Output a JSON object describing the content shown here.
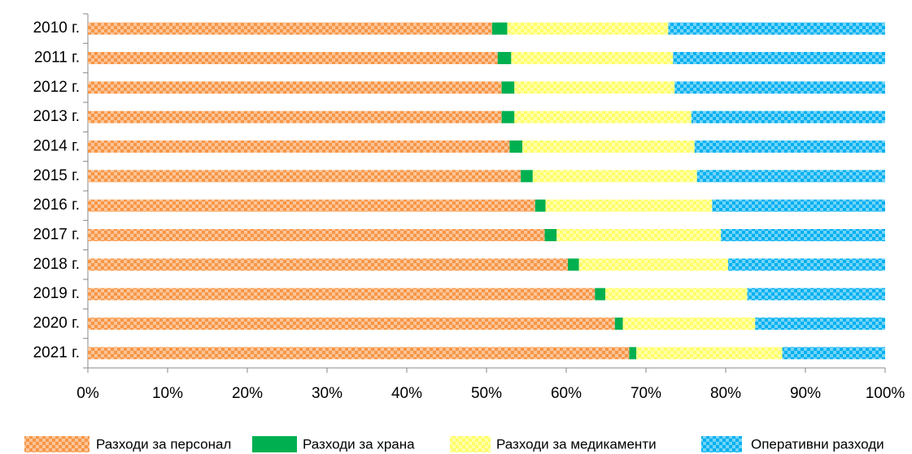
{
  "chart_data": {
    "type": "stacked-bar-horizontal",
    "categories": [
      "2010 г.",
      "2011 г.",
      "2012 г.",
      "2013 г.",
      "2014 г.",
      "2015 г.",
      "2016 г.",
      "2017 г.",
      "2018 г.",
      "2019 г.",
      "2020 г.",
      "2021 г."
    ],
    "series": [
      {
        "name": "Разходи за персонал",
        "color": "#f79646",
        "pattern": true,
        "values": [
          50.7,
          51.4,
          51.9,
          51.9,
          52.9,
          54.3,
          56.1,
          57.3,
          60.2,
          63.6,
          66.1,
          67.9
        ]
      },
      {
        "name": "Разходи за храна",
        "color": "#00b050",
        "pattern": false,
        "values": [
          1.9,
          1.7,
          1.6,
          1.6,
          1.6,
          1.5,
          1.3,
          1.5,
          1.4,
          1.3,
          1.0,
          0.9
        ]
      },
      {
        "name": "Разходи за медикаменти",
        "color": "#ffff66",
        "pattern": true,
        "values": [
          20.2,
          20.3,
          20.1,
          22.2,
          21.6,
          20.6,
          20.9,
          20.6,
          18.7,
          17.8,
          16.6,
          18.3
        ]
      },
      {
        "name": "Оперативни разходи",
        "color": "#00b0f0",
        "pattern": true,
        "values": [
          27.2,
          26.6,
          26.4,
          24.3,
          23.9,
          23.6,
          21.7,
          20.6,
          19.7,
          17.3,
          16.3,
          12.9
        ]
      }
    ],
    "xlim": [
      0,
      100
    ],
    "xticks": [
      {
        "value": 0,
        "label": "0%"
      },
      {
        "value": 10,
        "label": "10%"
      },
      {
        "value": 20,
        "label": "20%"
      },
      {
        "value": 30,
        "label": "30%"
      },
      {
        "value": 40,
        "label": "40%"
      },
      {
        "value": 50,
        "label": "50%"
      },
      {
        "value": 60,
        "label": "60%"
      },
      {
        "value": 70,
        "label": "70%"
      },
      {
        "value": 80,
        "label": "80%"
      },
      {
        "value": 90,
        "label": "90%"
      },
      {
        "value": 100,
        "label": "100%"
      }
    ],
    "legend": "bottom"
  }
}
